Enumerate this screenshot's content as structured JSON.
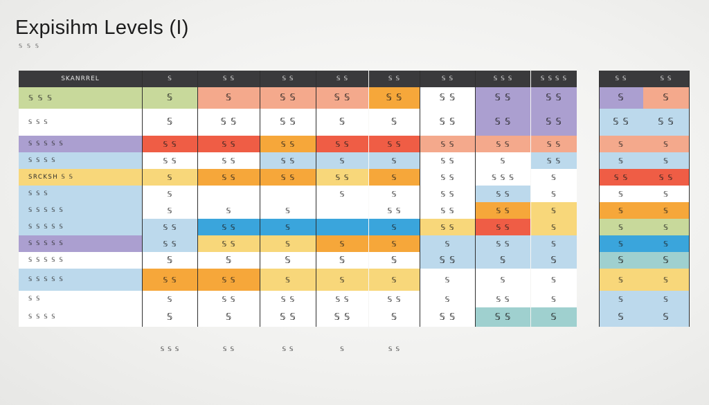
{
  "title": "Expisihm Levels (I)",
  "subtitle": "𝕊 𝕊 𝕊",
  "columns": [
    "SKANRREL",
    "𝕊",
    "𝕊 𝕊",
    "𝕊 𝕊",
    "𝕊 𝕊",
    "𝕊 𝕊",
    "𝕊 𝕊",
    "𝕊 𝕊 𝕊",
    "𝕊 𝕊 𝕊 𝕊",
    "𝕊 𝕊",
    "𝕊 𝕊"
  ],
  "rows": [
    {
      "label": "𝕊 𝕊 𝕊",
      "cells": [
        "𝕊",
        "𝕊",
        "𝕊 𝕊",
        "𝕊 𝕊",
        "𝕊 𝕊",
        "𝕊 𝕊",
        "𝕊 𝕊",
        "𝕊 𝕊",
        "𝕊",
        "𝕊"
      ]
    },
    {
      "label": "𝕊 𝕊 𝕊",
      "cells": [
        "𝕊",
        "𝕊 𝕊",
        "𝕊 𝕊",
        "𝕊",
        "𝕊",
        "𝕊 𝕊",
        "𝕊 𝕊",
        "𝕊 𝕊",
        "𝕊 𝕊",
        "𝕊 𝕊"
      ]
    },
    {
      "label": "𝕊 𝕊 𝕊 𝕊 𝕊",
      "cells": [
        "𝕊 𝕊",
        "𝕊 𝕊",
        "𝕊 𝕊",
        "𝕊 𝕊",
        "𝕊 𝕊",
        "𝕊 𝕊",
        "𝕊 𝕊",
        "𝕊 𝕊",
        "𝕊",
        "𝕊"
      ]
    },
    {
      "label": "𝕊 𝕊 𝕊 𝕊",
      "cells": [
        "𝕊 𝕊",
        "𝕊 𝕊",
        "𝕊 𝕊",
        "𝕊",
        "𝕊",
        "𝕊 𝕊",
        "𝕊",
        "𝕊 𝕊",
        "𝕊",
        "𝕊"
      ]
    },
    {
      "label": "SRCKSH 𝕊 𝕊",
      "cells": [
        "𝕊",
        "𝕊 𝕊",
        "𝕊 𝕊",
        "𝕊 𝕊",
        "𝕊",
        "𝕊 𝕊",
        "𝕊 𝕊 𝕊",
        "𝕊",
        "𝕊 𝕊",
        "𝕊 𝕊"
      ]
    },
    {
      "label": "𝕊 𝕊 𝕊",
      "cells": [
        "𝕊",
        "",
        "",
        "𝕊",
        "𝕊",
        "𝕊 𝕊",
        "𝕊 𝕊",
        "𝕊",
        "𝕊",
        "𝕊"
      ]
    },
    {
      "label": "𝕊 𝕊 𝕊 𝕊 𝕊",
      "cells": [
        "𝕊",
        "𝕊",
        "𝕊",
        "",
        "𝕊 𝕊",
        "𝕊 𝕊",
        "𝕊 𝕊",
        "𝕊",
        "𝕊",
        "𝕊"
      ]
    },
    {
      "label": "𝕊 𝕊 𝕊 𝕊 𝕊",
      "cells": [
        "𝕊 𝕊",
        "𝕊 𝕊",
        "𝕊",
        "",
        "𝕊",
        "𝕊 𝕊",
        "𝕊 𝕊",
        "𝕊",
        "𝕊",
        "𝕊"
      ]
    },
    {
      "label": "𝕊 𝕊 𝕊 𝕊 𝕊",
      "cells": [
        "𝕊 𝕊",
        "𝕊 𝕊",
        "𝕊",
        "𝕊",
        "𝕊",
        "𝕊",
        "𝕊 𝕊",
        "𝕊",
        "𝕊",
        "𝕊"
      ]
    },
    {
      "label": "𝕊 𝕊 𝕊 𝕊 𝕊",
      "cells": [
        "𝕊",
        "𝕊",
        "𝕊",
        "𝕊",
        "𝕊",
        "𝕊 𝕊",
        "𝕊",
        "𝕊",
        "𝕊",
        "𝕊"
      ]
    },
    {
      "label": "𝕊 𝕊 𝕊 𝕊 𝕊",
      "cells": [
        "𝕊 𝕊",
        "𝕊 𝕊",
        "𝕊",
        "𝕊",
        "𝕊",
        "𝕊",
        "𝕊",
        "𝕊",
        "𝕊",
        "𝕊"
      ]
    },
    {
      "label": "𝕊 𝕊",
      "cells": [
        "𝕊",
        "𝕊 𝕊",
        "𝕊 𝕊",
        "𝕊 𝕊",
        "𝕊 𝕊",
        "𝕊",
        "𝕊 𝕊",
        "𝕊",
        "𝕊",
        "𝕊"
      ]
    },
    {
      "label": "𝕊 𝕊 𝕊 𝕊",
      "cells": [
        "𝕊",
        "𝕊",
        "𝕊 𝕊",
        "𝕊 𝕊",
        "𝕊",
        "𝕊 𝕊",
        "𝕊 𝕊",
        "𝕊",
        "𝕊",
        "𝕊"
      ]
    }
  ],
  "footer": [
    "𝕊 𝕊 𝕊",
    "𝕊 𝕊",
    "𝕊 𝕊",
    "𝕊",
    "𝕊 𝕊"
  ],
  "colors": {
    "header": "#3a3a3c",
    "purple": "#ab9fd0",
    "green": "#c8d99b",
    "salmon": "#f4a98c",
    "red": "#ef5d45",
    "orange": "#f6a73a",
    "yellow": "#f8d77a",
    "light_blue": "#bcd9ec",
    "blue": "#3aa5dc",
    "teal": "#9fd0cf",
    "white": "#ffffff"
  }
}
